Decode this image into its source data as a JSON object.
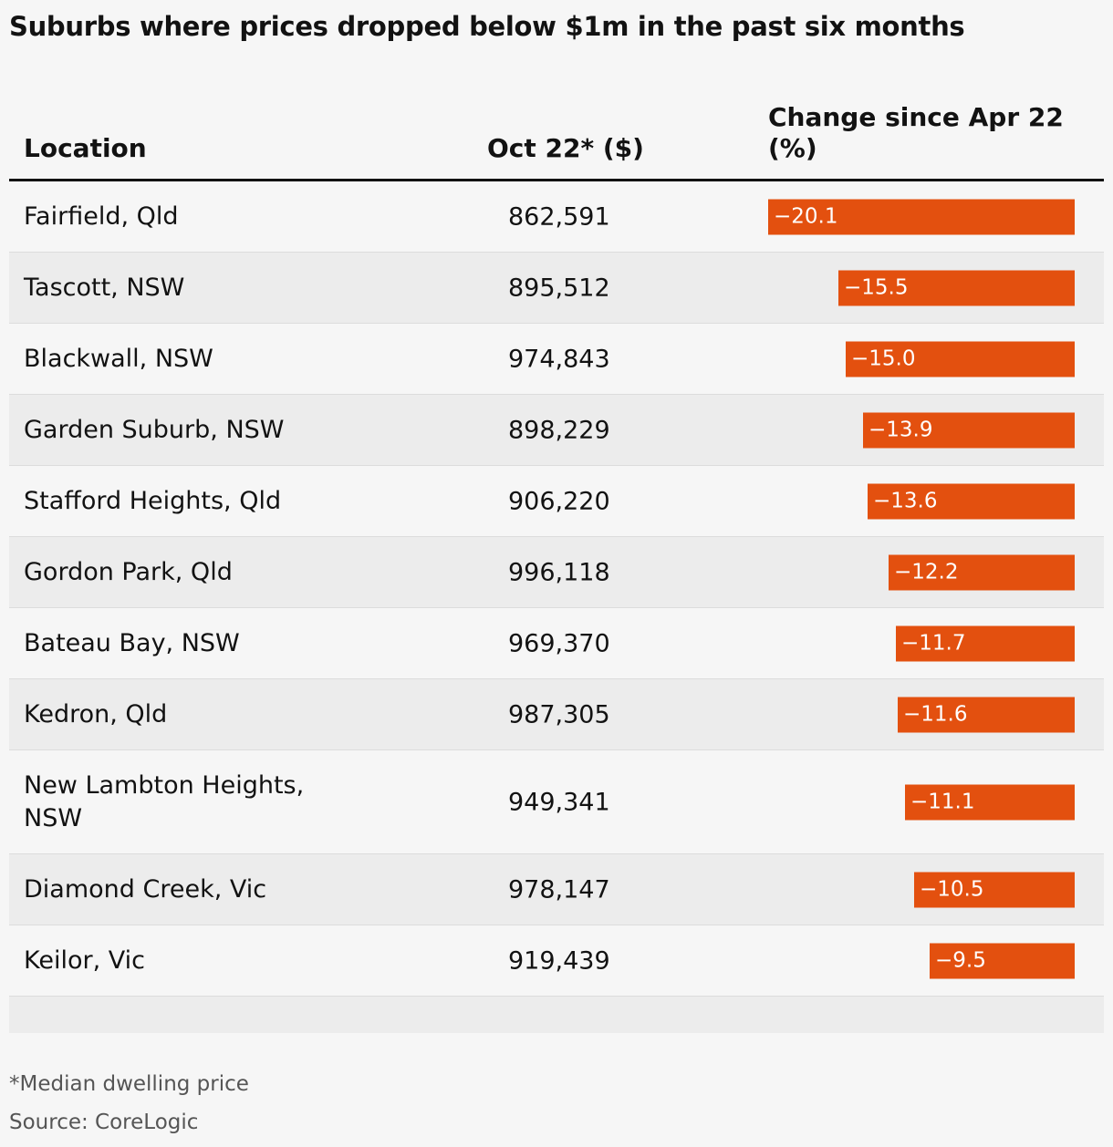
{
  "title": "Suburbs where prices dropped below $1m in the past six months",
  "headers": {
    "location": "Location",
    "price": "Oct 22* ($)",
    "change": "Change since Apr 22 (%)"
  },
  "colors": {
    "bar": "#e3500f",
    "row_alt": "#ececec",
    "background": "#f6f6f6"
  },
  "chart_data": {
    "type": "table",
    "title": "Suburbs where prices dropped below $1m in the past six months",
    "columns": [
      "Location",
      "Oct 22* ($)",
      "Change since Apr 22 (%)"
    ],
    "rows": [
      {
        "location": "Fairfield, Qld",
        "price": "862,591",
        "change": -20.1,
        "change_label": "−20.1"
      },
      {
        "location": "Tascott, NSW",
        "price": "895,512",
        "change": -15.5,
        "change_label": "−15.5"
      },
      {
        "location": "Blackwall, NSW",
        "price": "974,843",
        "change": -15.0,
        "change_label": "−15.0"
      },
      {
        "location": "Garden Suburb, NSW",
        "price": "898,229",
        "change": -13.9,
        "change_label": "−13.9"
      },
      {
        "location": "Stafford Heights, Qld",
        "price": "906,220",
        "change": -13.6,
        "change_label": "−13.6"
      },
      {
        "location": "Gordon Park, Qld",
        "price": "996,118",
        "change": -12.2,
        "change_label": "−12.2"
      },
      {
        "location": "Bateau Bay, NSW",
        "price": "969,370",
        "change": -11.7,
        "change_label": "−11.7"
      },
      {
        "location": "Kedron, Qld",
        "price": "987,305",
        "change": -11.6,
        "change_label": "−11.6"
      },
      {
        "location": "New Lambton Heights, NSW",
        "price": "949,341",
        "change": -11.1,
        "change_label": "−11.1"
      },
      {
        "location": "Diamond Creek, Vic",
        "price": "978,147",
        "change": -10.5,
        "change_label": "−10.5"
      },
      {
        "location": "Keilor, Vic",
        "price": "919,439",
        "change": -9.5,
        "change_label": "−9.5"
      }
    ]
  },
  "notes": {
    "footnote": "*Median dwelling price",
    "source": "Source: CoreLogic"
  }
}
